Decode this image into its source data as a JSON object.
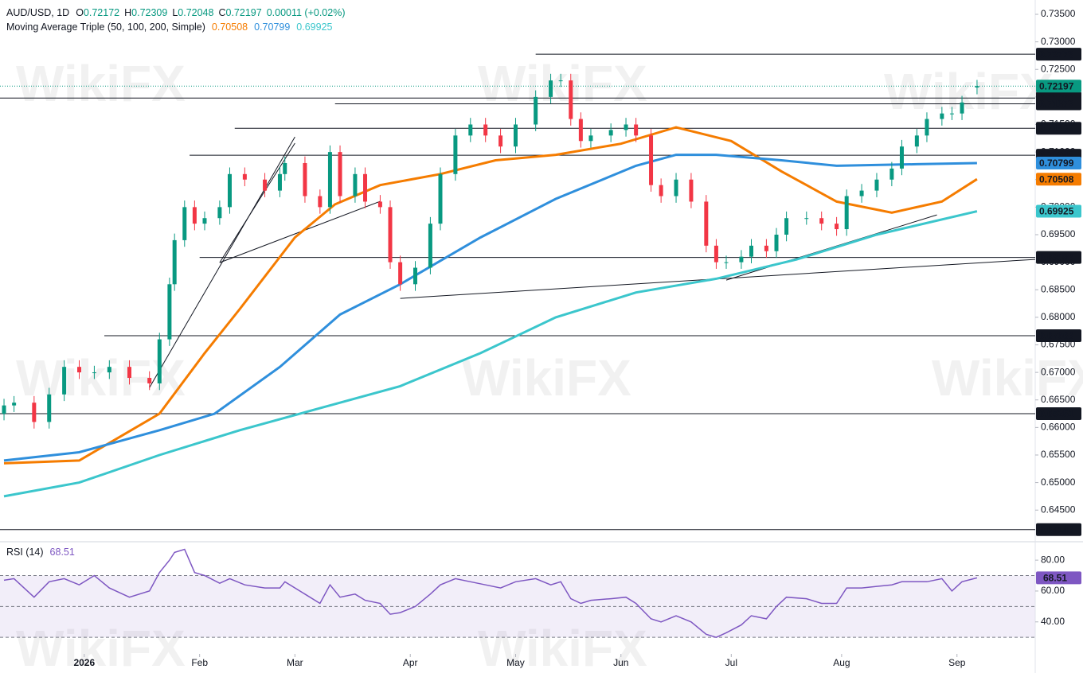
{
  "chart_data": {
    "type": "candlestick",
    "header": {
      "symbol": "AUD/USD, 1D",
      "ohlc": [
        {
          "key": "O",
          "value": "0.72172"
        },
        {
          "key": "H",
          "value": "0.72309"
        },
        {
          "key": "L",
          "value": "0.72048"
        },
        {
          "key": "C",
          "value": "0.72197"
        }
      ],
      "change": "0.00011 (+0.02%)",
      "ma_title": "Moving Average Triple (50, 100, 200, Simple)"
    },
    "watermark": "WikiFX",
    "up_color": "#089981",
    "down_color": "#f23645",
    "xlim": [
      -0.8,
      205.6
    ],
    "xticks": [
      {
        "value": 16,
        "label": "2026"
      },
      {
        "value": 39,
        "label": "Feb"
      },
      {
        "value": 58,
        "label": "Mar"
      },
      {
        "value": 81,
        "label": "Apr"
      },
      {
        "value": 102,
        "label": "May"
      },
      {
        "value": 123,
        "label": "Jun"
      },
      {
        "value": 145,
        "label": "Jul"
      },
      {
        "value": 167,
        "label": "Aug"
      },
      {
        "value": 190,
        "label": "Sep"
      }
    ],
    "ylim": [
      0.6394,
      0.7376
    ],
    "yticks": [
      {
        "value": 0.735,
        "label": "0.73500"
      },
      {
        "value": 0.73,
        "label": "0.73000"
      },
      {
        "value": 0.725,
        "label": "0.72500"
      },
      {
        "value": 0.72,
        "label": "0.72000"
      },
      {
        "value": 0.715,
        "label": "0.71500"
      },
      {
        "value": 0.71,
        "label": "0.71000"
      },
      {
        "value": 0.705,
        "label": "0.70500"
      },
      {
        "value": 0.7,
        "label": "0.70000"
      },
      {
        "value": 0.695,
        "label": "0.69500"
      },
      {
        "value": 0.69,
        "label": "0.69000"
      },
      {
        "value": 0.685,
        "label": "0.68500"
      },
      {
        "value": 0.68,
        "label": "0.68000"
      },
      {
        "value": 0.675,
        "label": "0.67500"
      },
      {
        "value": 0.67,
        "label": "0.67000"
      },
      {
        "value": 0.665,
        "label": "0.66500"
      },
      {
        "value": 0.66,
        "label": "0.66000"
      },
      {
        "value": 0.655,
        "label": "0.65500"
      },
      {
        "value": 0.65,
        "label": "0.65000"
      },
      {
        "value": 0.645,
        "label": "0.64500"
      }
    ],
    "candles": {
      "x": [
        0,
        2,
        6,
        9,
        12,
        15,
        18,
        21,
        25,
        29,
        31,
        33,
        34,
        36,
        38,
        40,
        43,
        45,
        48,
        52,
        55,
        56,
        60,
        63,
        65,
        67,
        70,
        72,
        75,
        77,
        79,
        82,
        85,
        87,
        90,
        93,
        96,
        99,
        102,
        106,
        109,
        111,
        113,
        115,
        117,
        121,
        124,
        126,
        129,
        131,
        134,
        137,
        140,
        142,
        144,
        147,
        149,
        152,
        154,
        156,
        160,
        163,
        166,
        168,
        171,
        174,
        177,
        179,
        182,
        184,
        187,
        189,
        191,
        194
      ],
      "open": [
        0.6625,
        0.664,
        0.6645,
        0.661,
        0.666,
        0.671,
        0.67,
        0.67,
        0.671,
        0.669,
        0.668,
        0.676,
        0.686,
        0.694,
        0.7,
        0.697,
        0.698,
        0.7,
        0.706,
        0.705,
        0.703,
        0.706,
        0.708,
        0.702,
        0.7,
        0.71,
        0.702,
        0.706,
        0.701,
        0.7,
        0.69,
        0.686,
        0.689,
        0.697,
        0.706,
        0.713,
        0.715,
        0.713,
        0.711,
        0.715,
        0.72,
        0.723,
        0.723,
        0.716,
        0.712,
        0.713,
        0.714,
        0.715,
        0.713,
        0.704,
        0.702,
        0.705,
        0.701,
        0.693,
        0.69,
        0.69,
        0.691,
        0.693,
        0.692,
        0.695,
        0.698,
        0.698,
        0.697,
        0.696,
        0.702,
        0.703,
        0.705,
        0.707,
        0.711,
        0.713,
        0.716,
        0.717,
        0.717,
        0.72172
      ],
      "high": [
        0.6652,
        0.6657,
        0.6657,
        0.6672,
        0.6722,
        0.6722,
        0.6712,
        0.6722,
        0.6722,
        0.6702,
        0.6772,
        0.6872,
        0.6952,
        0.7012,
        0.7012,
        0.6992,
        0.7012,
        0.7072,
        0.7072,
        0.7062,
        0.7072,
        0.7092,
        0.7092,
        0.7032,
        0.7112,
        0.7112,
        0.7072,
        0.7072,
        0.7022,
        0.7012,
        0.6912,
        0.6902,
        0.6982,
        0.7072,
        0.7142,
        0.7162,
        0.7162,
        0.7142,
        0.7162,
        0.7212,
        0.7242,
        0.7242,
        0.7242,
        0.7172,
        0.7142,
        0.7152,
        0.7162,
        0.7162,
        0.7142,
        0.7052,
        0.7062,
        0.7062,
        0.7022,
        0.6942,
        0.6912,
        0.6922,
        0.6942,
        0.6942,
        0.6962,
        0.6992,
        0.6992,
        0.6992,
        0.6982,
        0.7032,
        0.7042,
        0.7062,
        0.7082,
        0.7122,
        0.7142,
        0.7172,
        0.7182,
        0.7182,
        0.7202,
        0.72309
      ],
      "low": [
        0.6613,
        0.6628,
        0.6598,
        0.6598,
        0.6648,
        0.6688,
        0.6688,
        0.6688,
        0.6678,
        0.6668,
        0.6668,
        0.6748,
        0.6848,
        0.6928,
        0.6958,
        0.6958,
        0.6968,
        0.6988,
        0.7038,
        0.7018,
        0.7018,
        0.7048,
        0.7008,
        0.6988,
        0.6988,
        0.7008,
        0.7008,
        0.6998,
        0.6988,
        0.6888,
        0.6848,
        0.6848,
        0.6878,
        0.6958,
        0.7048,
        0.7118,
        0.7118,
        0.7098,
        0.7098,
        0.7138,
        0.7188,
        0.7218,
        0.7148,
        0.7108,
        0.7108,
        0.7118,
        0.7128,
        0.7118,
        0.7028,
        0.7008,
        0.7008,
        0.6998,
        0.6918,
        0.6888,
        0.6888,
        0.6888,
        0.6898,
        0.6908,
        0.6908,
        0.6938,
        0.6968,
        0.6958,
        0.6948,
        0.6948,
        0.7008,
        0.7018,
        0.7038,
        0.7058,
        0.7098,
        0.7118,
        0.7148,
        0.7158,
        0.7158,
        0.72048
      ],
      "close": [
        0.664,
        0.6645,
        0.661,
        0.666,
        0.671,
        0.67,
        0.67,
        0.671,
        0.669,
        0.668,
        0.676,
        0.686,
        0.694,
        0.7,
        0.697,
        0.698,
        0.7,
        0.706,
        0.705,
        0.703,
        0.706,
        0.708,
        0.702,
        0.7,
        0.71,
        0.702,
        0.706,
        0.701,
        0.7,
        0.69,
        0.686,
        0.689,
        0.697,
        0.706,
        0.713,
        0.715,
        0.713,
        0.711,
        0.715,
        0.72,
        0.723,
        0.723,
        0.716,
        0.712,
        0.713,
        0.714,
        0.715,
        0.713,
        0.704,
        0.702,
        0.705,
        0.701,
        0.693,
        0.69,
        0.69,
        0.691,
        0.693,
        0.692,
        0.695,
        0.698,
        0.698,
        0.697,
        0.696,
        0.702,
        0.703,
        0.705,
        0.707,
        0.711,
        0.713,
        0.716,
        0.717,
        0.717,
        0.719,
        0.72197
      ]
    },
    "series": [
      {
        "color": "#f57c00",
        "label": "0.70508",
        "x": [
          0,
          15,
          31,
          40,
          47,
          58,
          66,
          75,
          87,
          98,
          110,
          123,
          134,
          145,
          155,
          166,
          177,
          187,
          194
        ],
        "values": [
          0.6535,
          0.654,
          0.6625,
          0.6735,
          0.6815,
          0.6945,
          0.7005,
          0.704,
          0.706,
          0.7085,
          0.7095,
          0.7115,
          0.7145,
          0.712,
          0.7065,
          0.701,
          0.699,
          0.701,
          0.70508
        ]
      },
      {
        "color": "#2f8fdc",
        "label": "0.70799",
        "x": [
          0,
          15,
          31,
          42,
          55,
          67,
          79,
          95,
          110,
          126,
          134,
          142,
          155,
          166,
          182,
          194
        ],
        "values": [
          0.654,
          0.6555,
          0.6595,
          0.6625,
          0.671,
          0.6805,
          0.686,
          0.6945,
          0.7015,
          0.7075,
          0.7095,
          0.7095,
          0.7085,
          0.7075,
          0.7078,
          0.70799
        ]
      },
      {
        "color": "#3bc6cc",
        "label": "0.69925",
        "x": [
          0,
          15,
          31,
          47,
          63,
          79,
          95,
          110,
          126,
          142,
          158,
          174,
          194
        ],
        "values": [
          0.6475,
          0.65,
          0.655,
          0.6595,
          0.6635,
          0.6675,
          0.6735,
          0.68,
          0.6845,
          0.687,
          0.6905,
          0.695,
          0.69925
        ]
      }
    ],
    "current_price": {
      "value": 0.72197,
      "label": "0.72197",
      "color": "#089981"
    },
    "price_lines": [
      {
        "value": 0.72776,
        "label": "0.72776",
        "start": 106
      },
      {
        "value": 0.7198,
        "label": "0.71980",
        "start": -0.8
      },
      {
        "value": 0.71876,
        "label": "0.71876",
        "start": 66
      },
      {
        "value": 0.71432,
        "label": "0.71432",
        "start": 46
      },
      {
        "value": 0.70943,
        "label": "0.70943",
        "start": 37
      },
      {
        "value": 0.69086,
        "label": "0.69086",
        "start": 39
      },
      {
        "value": 0.67666,
        "label": "0.67666",
        "start": 20
      },
      {
        "value": 0.66251,
        "label": "0.66251",
        "start": -0.8
      },
      {
        "value": 0.64146,
        "label": "0.64146",
        "start": -0.8
      }
    ],
    "trendlines": [
      {
        "x": [
          29,
          58
        ],
        "y": [
          0.66724,
          0.71275
        ]
      },
      {
        "x": [
          43,
          58
        ],
        "y": [
          0.68993,
          0.7116
        ]
      },
      {
        "x": [
          43,
          75
        ],
        "y": [
          0.68993,
          0.70105
        ]
      },
      {
        "x": [
          79,
          205.6
        ],
        "y": [
          0.68343,
          0.69051
        ]
      },
      {
        "x": [
          144,
          186
        ],
        "y": [
          0.68675,
          0.69859
        ]
      }
    ],
    "rsi": {
      "title": "RSI (14)",
      "label": "68.51",
      "color": "#7e57c2",
      "ylim": [
        20.3,
        91.4
      ],
      "yticks": [
        {
          "value": 80,
          "label": "80.00"
        },
        {
          "value": 60,
          "label": "60.00"
        },
        {
          "value": 40,
          "label": "40.00"
        }
      ],
      "levels": [
        70,
        50,
        30
      ],
      "values": [
        67,
        68,
        56,
        66,
        68,
        64,
        70,
        62,
        56,
        60,
        72,
        80,
        85,
        87,
        72,
        70,
        65,
        68,
        64,
        62,
        62,
        66,
        58,
        52,
        64,
        56,
        58,
        54,
        52,
        45,
        46,
        50,
        58,
        64,
        68,
        66,
        64,
        62,
        66,
        68,
        64,
        66,
        55,
        52,
        54,
        55,
        56,
        52,
        42,
        40,
        44,
        40,
        32,
        30,
        33,
        38,
        44,
        42,
        50,
        56,
        55,
        52,
        52,
        62,
        62,
        63,
        64,
        66,
        66,
        66,
        68,
        60,
        66,
        68.51
      ]
    }
  }
}
